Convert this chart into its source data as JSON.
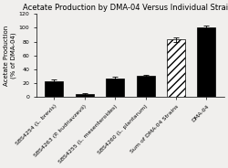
{
  "title": "Acetate Production by DMA-04 Versus Individual Strains",
  "ylabel": "Acetate Production\n(% of DMA-04)",
  "categories": [
    "SBS4254 (L. brevis)",
    "SBS4263 (P. kudriavzevii)",
    "SBS4255 (L. mesenteroides)",
    "SBS4260 (L. plantarum)",
    "Sum of DMA-04 Strains",
    "DMA-04"
  ],
  "values": [
    23,
    4,
    26,
    30,
    83,
    100
  ],
  "errors": [
    2,
    1.5,
    2.5,
    2,
    3,
    3
  ],
  "bar_colors": [
    "black",
    "black",
    "black",
    "black",
    "white",
    "black"
  ],
  "hatches": [
    "",
    "",
    "",
    "",
    "////",
    ""
  ],
  "ylim": [
    0,
    120
  ],
  "yticks": [
    0,
    20,
    40,
    60,
    80,
    100,
    120
  ],
  "title_fontsize": 6,
  "label_fontsize": 5,
  "tick_fontsize": 4.5,
  "background_color": "#f0efed"
}
